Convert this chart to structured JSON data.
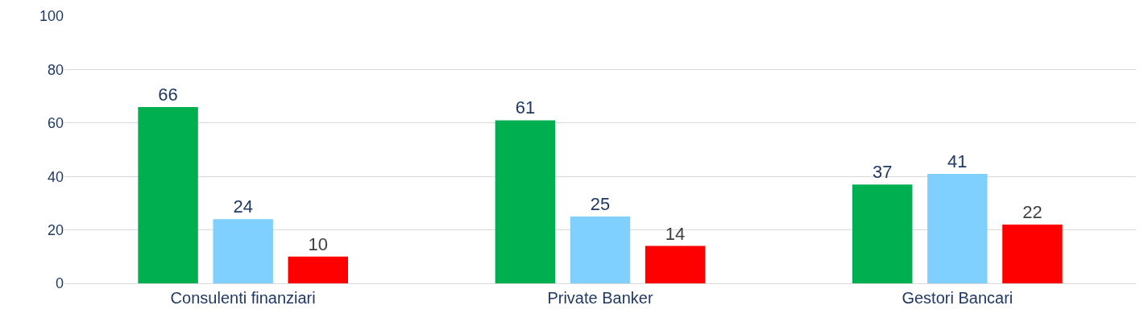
{
  "chart_data": {
    "type": "bar",
    "categories": [
      "Consulenti finanziari",
      "Private Banker",
      "Gestori Bancari"
    ],
    "series": [
      {
        "color": "#00b050",
        "values": [
          66,
          61,
          37
        ]
      },
      {
        "color": "#80d0ff",
        "values": [
          24,
          25,
          41
        ]
      },
      {
        "color": "#ff0000",
        "values": [
          10,
          14,
          22
        ]
      }
    ],
    "ylim": [
      0,
      100
    ],
    "yticks": [
      0,
      20,
      40,
      60,
      80,
      100
    ],
    "grid": "y",
    "legend": false,
    "data_labels": true
  }
}
